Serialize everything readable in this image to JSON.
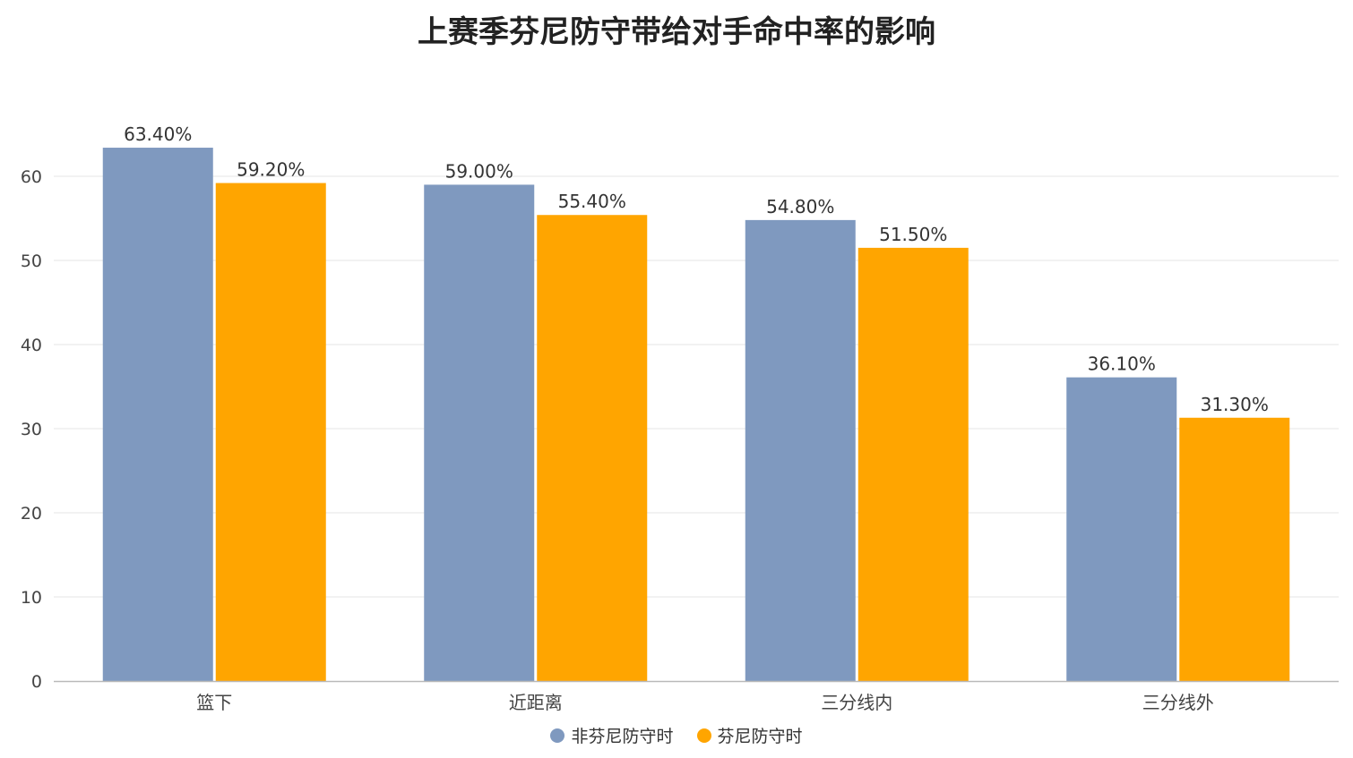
{
  "chart_data": {
    "type": "bar",
    "title": "上赛季芬尼防守带给对手命中率的影响",
    "categories": [
      "篮下",
      "近距离",
      "三分线内",
      "三分线外"
    ],
    "series": [
      {
        "name": "非芬尼防守时",
        "color": "#7f99bf",
        "values": [
          63.4,
          59.0,
          54.8,
          36.1
        ],
        "labels": [
          "63.40%",
          "59.00%",
          "54.80%",
          "36.10%"
        ]
      },
      {
        "name": "芬尼防守时",
        "color": "#ffa500",
        "values": [
          59.2,
          55.4,
          51.5,
          31.3
        ],
        "labels": [
          "59.20%",
          "55.40%",
          "51.50%",
          "31.30%"
        ]
      }
    ],
    "xlabel": "",
    "ylabel": "",
    "ylim": [
      0,
      60
    ],
    "yticks": [
      0,
      10,
      20,
      30,
      40,
      50,
      60
    ],
    "grid": true,
    "legend_position": "bottom"
  }
}
